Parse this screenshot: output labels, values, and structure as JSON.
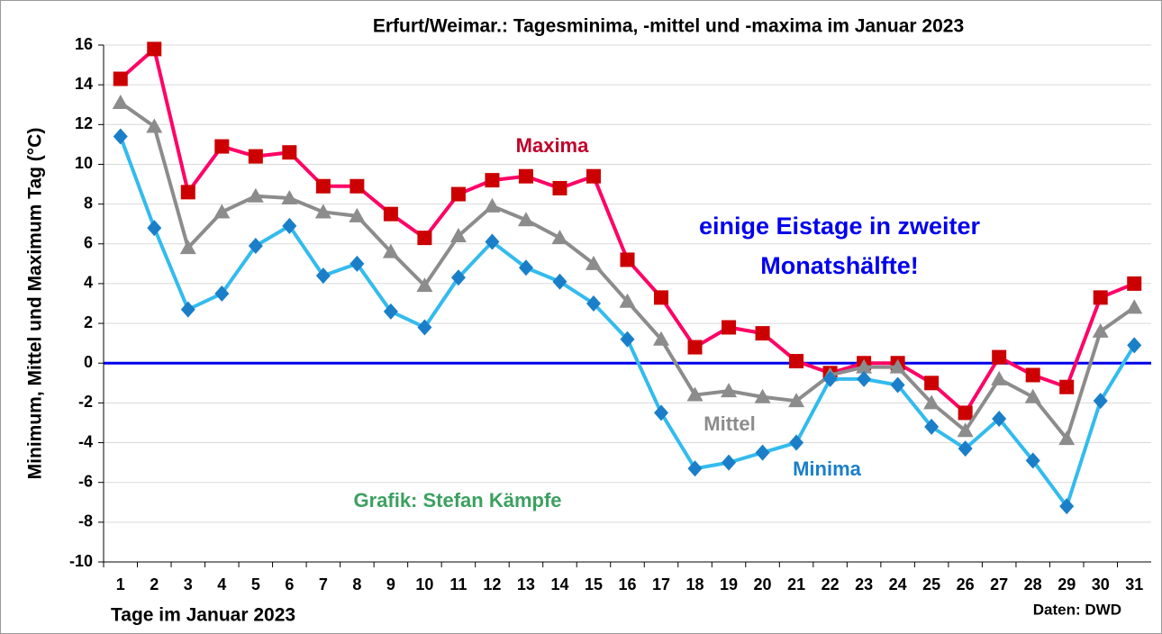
{
  "chart_data": {
    "type": "line",
    "title": "Erfurt/Weimar.:  Tagesminima, -mittel und -maxima im Januar 2023",
    "xlabel": "Tage im Januar 2023",
    "ylabel": "Minimum, Mittel und Maximum Tag (°C)",
    "annotations": [
      "einige Eistage in zweiter",
      "Monatshälfte!",
      "Grafik: Stefan Kämpfe",
      "Daten: DWD"
    ],
    "categories": [
      "1",
      "2",
      "3",
      "4",
      "5",
      "6",
      "7",
      "8",
      "9",
      "10",
      "11",
      "12",
      "13",
      "14",
      "15",
      "16",
      "17",
      "18",
      "19",
      "20",
      "21",
      "22",
      "23",
      "24",
      "25",
      "26",
      "27",
      "28",
      "29",
      "30",
      "31"
    ],
    "series": [
      {
        "name": "Maxima",
        "color": "#ff0066",
        "marker": "square",
        "marker_color": "#cc0000",
        "values": [
          14.3,
          15.8,
          8.6,
          10.9,
          10.4,
          10.6,
          8.9,
          8.9,
          7.5,
          6.3,
          8.5,
          9.2,
          9.4,
          8.8,
          9.4,
          5.2,
          3.3,
          0.8,
          1.8,
          1.5,
          0.1,
          -0.5,
          0,
          0,
          -1.0,
          -2.5,
          0.3,
          -0.6,
          -1.2,
          3.3,
          4.0
        ]
      },
      {
        "name": "Mittel",
        "color": "#8c8c8c",
        "marker": "triangle",
        "marker_color": "#8c8c8c",
        "values": [
          13.1,
          11.9,
          5.8,
          7.6,
          8.4,
          8.3,
          7.6,
          7.4,
          5.6,
          3.9,
          6.4,
          7.9,
          7.2,
          6.3,
          5.0,
          3.1,
          1.2,
          -1.6,
          -1.4,
          -1.7,
          -1.9,
          -0.6,
          -0.2,
          -0.2,
          -2.0,
          -3.4,
          -0.8,
          -1.7,
          -3.8,
          1.6,
          2.8
        ]
      },
      {
        "name": "Minima",
        "color": "#33bbee",
        "marker": "diamond",
        "marker_color": "#1a7fc8",
        "values": [
          11.4,
          6.8,
          2.7,
          3.5,
          5.9,
          6.9,
          4.4,
          5.0,
          2.6,
          1.8,
          4.3,
          6.1,
          4.8,
          4.1,
          3.0,
          1.2,
          -2.5,
          -5.3,
          -5.0,
          -4.5,
          -4.0,
          -0.8,
          -0.8,
          -1.1,
          -3.2,
          -4.3,
          -2.8,
          -4.9,
          -7.2,
          -1.9,
          0.9
        ]
      }
    ],
    "ylim": [
      -10,
      16
    ],
    "yticks": [
      -10,
      -8,
      -6,
      -4,
      -2,
      0,
      2,
      4,
      6,
      8,
      10,
      12,
      14,
      16
    ],
    "grid": true,
    "zero_line_color": "#0000ee"
  }
}
